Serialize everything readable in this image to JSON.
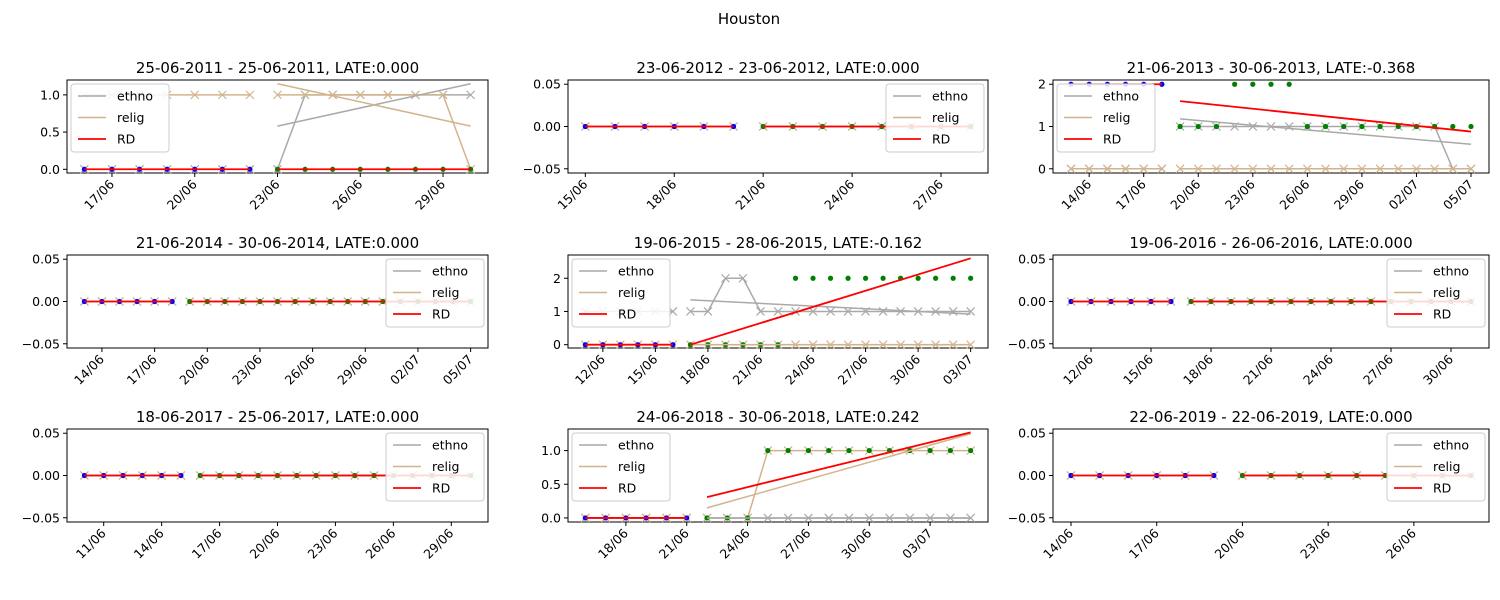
{
  "figure": {
    "suptitle": "Houston"
  },
  "legend_labels": {
    "ethno": "ethno",
    "relig": "relig",
    "rd": "RD"
  },
  "colors": {
    "ethno": "#a9a9a9",
    "relig": "#d2b48c",
    "rd": "#ff0000",
    "pre_marker": "#0000ff",
    "post_marker": "#008000",
    "axis": "#000000"
  },
  "chart_data": [
    {
      "type": "line",
      "title": "25-06-2011 - 25-06-2011, LATE:0.000",
      "legend": "top-left",
      "x_dates": [
        "2011-06-16",
        "2011-06-17",
        "2011-06-18",
        "2011-06-19",
        "2011-06-20",
        "2011-06-21",
        "2011-06-22",
        "2011-06-23",
        "2011-06-24",
        "2011-06-25",
        "2011-06-26",
        "2011-06-27",
        "2011-06-28",
        "2011-06-29",
        "2011-06-30"
      ],
      "cutoff": "2011-06-22",
      "ylim": [
        -0.05,
        1.2
      ],
      "yticks": [
        "0.0",
        "0.5",
        "1.0"
      ],
      "ytick_values": [
        0,
        0.5,
        1.0
      ],
      "xticks": [
        "17/06",
        "20/06",
        "23/06",
        "26/06",
        "29/06"
      ],
      "xtick_dates": [
        "2011-06-17",
        "2011-06-20",
        "2011-06-23",
        "2011-06-26",
        "2011-06-29"
      ],
      "ethno": [
        0,
        0,
        0,
        0,
        0,
        0,
        0,
        0,
        1,
        1,
        1,
        1,
        1,
        1,
        1
      ],
      "relig": [
        1,
        1,
        1,
        1,
        1,
        1,
        1,
        1,
        1,
        1,
        1,
        1,
        1,
        1,
        0
      ],
      "outcome": [
        0,
        0,
        0,
        0,
        0,
        0,
        0,
        0,
        0,
        0,
        0,
        0,
        0,
        0,
        0
      ],
      "ethno_fit": [
        0.58,
        1.15
      ],
      "relig_fit": [
        1.15,
        0.58
      ],
      "rd_fit_pre": [
        0,
        0
      ],
      "rd_fit_post": [
        0,
        0
      ]
    },
    {
      "type": "line",
      "title": "23-06-2012 - 23-06-2012, LATE:0.000",
      "legend": "top-right",
      "x_dates": [
        "2012-06-15",
        "2012-06-16",
        "2012-06-17",
        "2012-06-18",
        "2012-06-19",
        "2012-06-20",
        "2012-06-21",
        "2012-06-22",
        "2012-06-23",
        "2012-06-24",
        "2012-06-25",
        "2012-06-26",
        "2012-06-27",
        "2012-06-28"
      ],
      "cutoff": "2012-06-20",
      "ylim": [
        -0.055,
        0.055
      ],
      "yticks": [
        "−0.05",
        "0.00",
        "0.05"
      ],
      "ytick_values": [
        -0.05,
        0,
        0.05
      ],
      "xticks": [
        "15/06",
        "18/06",
        "21/06",
        "24/06",
        "27/06"
      ],
      "xtick_dates": [
        "2012-06-15",
        "2012-06-18",
        "2012-06-21",
        "2012-06-24",
        "2012-06-27"
      ],
      "ethno": [
        0,
        0,
        0,
        0,
        0,
        0,
        0,
        0,
        0,
        0,
        0,
        0,
        0,
        0
      ],
      "relig": [
        0,
        0,
        0,
        0,
        0,
        0,
        0,
        0,
        0,
        0,
        0,
        0,
        0,
        0
      ],
      "outcome": [
        0,
        0,
        0,
        0,
        0,
        0,
        0,
        0,
        0,
        0,
        0,
        0,
        0,
        0
      ],
      "ethno_fit": [
        0,
        0
      ],
      "relig_fit": [
        0,
        0
      ],
      "rd_fit_pre": [
        0,
        0
      ],
      "rd_fit_post": [
        0,
        0
      ]
    },
    {
      "type": "line",
      "title": "21-06-2013 - 30-06-2013, LATE:-0.368",
      "legend": "top-left",
      "x_dates": [
        "2013-06-13",
        "2013-06-14",
        "2013-06-15",
        "2013-06-16",
        "2013-06-17",
        "2013-06-18",
        "2013-06-19",
        "2013-06-20",
        "2013-06-21",
        "2013-06-22",
        "2013-06-23",
        "2013-06-24",
        "2013-06-25",
        "2013-06-26",
        "2013-06-27",
        "2013-06-28",
        "2013-06-29",
        "2013-06-30",
        "2013-07-01",
        "2013-07-02",
        "2013-07-03",
        "2013-07-04",
        "2013-07-05"
      ],
      "cutoff": "2013-06-18",
      "ylim": [
        -0.1,
        2.1
      ],
      "yticks": [
        "0",
        "1",
        "2"
      ],
      "ytick_values": [
        0,
        1,
        2
      ],
      "xticks": [
        "14/06",
        "17/06",
        "20/06",
        "23/06",
        "26/06",
        "29/06",
        "02/07",
        "05/07"
      ],
      "xtick_dates": [
        "2013-06-14",
        "2013-06-17",
        "2013-06-20",
        "2013-06-23",
        "2013-06-26",
        "2013-06-29",
        "2013-07-02",
        "2013-07-05"
      ],
      "ethno": [
        0,
        0,
        0,
        0,
        0,
        0,
        1,
        1,
        1,
        1,
        1,
        1,
        1,
        1,
        1,
        1,
        1,
        1,
        1,
        1,
        1,
        0,
        0
      ],
      "relig": [
        0,
        0,
        0,
        0,
        0,
        0,
        0,
        0,
        0,
        0,
        0,
        0,
        0,
        0,
        0,
        0,
        0,
        0,
        0,
        0,
        0,
        0,
        0
      ],
      "outcome": [
        2,
        2,
        2,
        2,
        2,
        2,
        1,
        1,
        1,
        2,
        2,
        2,
        2,
        1,
        1,
        1,
        1,
        1,
        1,
        1,
        1,
        1,
        1
      ],
      "ethno_fit": [
        1.18,
        0.58
      ],
      "relig_fit": [
        0,
        0
      ],
      "rd_fit_pre": [
        2,
        2
      ],
      "rd_fit_post": [
        1.6,
        0.88
      ]
    },
    {
      "type": "line",
      "title": "21-06-2014 - 30-06-2014, LATE:0.000",
      "legend": "top-right",
      "x_dates": [
        "2014-06-13",
        "2014-06-14",
        "2014-06-15",
        "2014-06-16",
        "2014-06-17",
        "2014-06-18",
        "2014-06-19",
        "2014-06-20",
        "2014-06-21",
        "2014-06-22",
        "2014-06-23",
        "2014-06-24",
        "2014-06-25",
        "2014-06-26",
        "2014-06-27",
        "2014-06-28",
        "2014-06-29",
        "2014-06-30",
        "2014-07-01",
        "2014-07-02",
        "2014-07-03",
        "2014-07-04",
        "2014-07-05"
      ],
      "cutoff": "2014-06-18",
      "ylim": [
        -0.055,
        0.055
      ],
      "yticks": [
        "−0.05",
        "0.00",
        "0.05"
      ],
      "ytick_values": [
        -0.05,
        0,
        0.05
      ],
      "xticks": [
        "14/06",
        "17/06",
        "20/06",
        "23/06",
        "26/06",
        "29/06",
        "02/07",
        "05/07"
      ],
      "xtick_dates": [
        "2014-06-14",
        "2014-06-17",
        "2014-06-20",
        "2014-06-23",
        "2014-06-26",
        "2014-06-29",
        "2014-07-02",
        "2014-07-05"
      ],
      "ethno": [
        0,
        0,
        0,
        0,
        0,
        0,
        0,
        0,
        0,
        0,
        0,
        0,
        0,
        0,
        0,
        0,
        0,
        0,
        0,
        0,
        0,
        0,
        0
      ],
      "relig": [
        0,
        0,
        0,
        0,
        0,
        0,
        0,
        0,
        0,
        0,
        0,
        0,
        0,
        0,
        0,
        0,
        0,
        0,
        0,
        0,
        0,
        0,
        0
      ],
      "outcome": [
        0,
        0,
        0,
        0,
        0,
        0,
        0,
        0,
        0,
        0,
        0,
        0,
        0,
        0,
        0,
        0,
        0,
        0,
        0,
        0,
        0,
        0,
        0
      ],
      "ethno_fit": [
        0,
        0
      ],
      "relig_fit": [
        0,
        0
      ],
      "rd_fit_pre": [
        0,
        0
      ],
      "rd_fit_post": [
        0,
        0
      ]
    },
    {
      "type": "line",
      "title": "19-06-2015 - 28-06-2015, LATE:-0.162",
      "legend": "top-left",
      "x_dates": [
        "2015-06-11",
        "2015-06-12",
        "2015-06-13",
        "2015-06-14",
        "2015-06-15",
        "2015-06-16",
        "2015-06-17",
        "2015-06-18",
        "2015-06-19",
        "2015-06-20",
        "2015-06-21",
        "2015-06-22",
        "2015-06-23",
        "2015-06-24",
        "2015-06-25",
        "2015-06-26",
        "2015-06-27",
        "2015-06-28",
        "2015-06-29",
        "2015-06-30",
        "2015-07-01",
        "2015-07-02",
        "2015-07-03"
      ],
      "cutoff": "2015-06-16",
      "ylim": [
        -0.1,
        2.7
      ],
      "yticks": [
        "0",
        "1",
        "2"
      ],
      "ytick_values": [
        0,
        1,
        2
      ],
      "xticks": [
        "12/06",
        "15/06",
        "18/06",
        "21/06",
        "24/06",
        "27/06",
        "30/06",
        "03/07"
      ],
      "xtick_dates": [
        "2015-06-12",
        "2015-06-15",
        "2015-06-18",
        "2015-06-21",
        "2015-06-24",
        "2015-06-27",
        "2015-06-30",
        "2015-07-03"
      ],
      "ethno": [
        1,
        1,
        1,
        1,
        1,
        1,
        1,
        1,
        2,
        2,
        1,
        1,
        1,
        1,
        1,
        1,
        1,
        1,
        1,
        1,
        1,
        1,
        1
      ],
      "relig": [
        0,
        0,
        0,
        0,
        0,
        0,
        0,
        0,
        0,
        0,
        0,
        0,
        0,
        0,
        0,
        0,
        0,
        0,
        0,
        0,
        0,
        0,
        0
      ],
      "outcome": [
        0,
        0,
        0,
        0,
        0,
        0,
        0,
        0,
        0,
        0,
        0,
        0,
        2,
        2,
        2,
        2,
        2,
        2,
        2,
        2,
        2,
        2,
        2
      ],
      "ethno_fit": [
        1.35,
        0.92
      ],
      "relig_fit": [
        0,
        0
      ],
      "rd_fit_pre": [
        0,
        0
      ],
      "rd_fit_post": [
        0,
        2.6
      ]
    },
    {
      "type": "line",
      "title": "19-06-2016 - 26-06-2016, LATE:0.000",
      "legend": "top-right",
      "x_dates": [
        "2016-06-11",
        "2016-06-12",
        "2016-06-13",
        "2016-06-14",
        "2016-06-15",
        "2016-06-16",
        "2016-06-17",
        "2016-06-18",
        "2016-06-19",
        "2016-06-20",
        "2016-06-21",
        "2016-06-22",
        "2016-06-23",
        "2016-06-24",
        "2016-06-25",
        "2016-06-26",
        "2016-06-27",
        "2016-06-28",
        "2016-06-29",
        "2016-06-30",
        "2016-07-01"
      ],
      "cutoff": "2016-06-16",
      "ylim": [
        -0.055,
        0.055
      ],
      "yticks": [
        "−0.05",
        "0.00",
        "0.05"
      ],
      "ytick_values": [
        -0.05,
        0,
        0.05
      ],
      "xticks": [
        "12/06",
        "15/06",
        "18/06",
        "21/06",
        "24/06",
        "27/06",
        "30/06"
      ],
      "xtick_dates": [
        "2016-06-12",
        "2016-06-15",
        "2016-06-18",
        "2016-06-21",
        "2016-06-24",
        "2016-06-27",
        "2016-06-30"
      ],
      "ethno": [
        0,
        0,
        0,
        0,
        0,
        0,
        0,
        0,
        0,
        0,
        0,
        0,
        0,
        0,
        0,
        0,
        0,
        0,
        0,
        0,
        0
      ],
      "relig": [
        0,
        0,
        0,
        0,
        0,
        0,
        0,
        0,
        0,
        0,
        0,
        0,
        0,
        0,
        0,
        0,
        0,
        0,
        0,
        0,
        0
      ],
      "outcome": [
        0,
        0,
        0,
        0,
        0,
        0,
        0,
        0,
        0,
        0,
        0,
        0,
        0,
        0,
        0,
        0,
        0,
        0,
        0,
        0,
        0
      ],
      "ethno_fit": [
        0,
        0
      ],
      "relig_fit": [
        0,
        0
      ],
      "rd_fit_pre": [
        0,
        0
      ],
      "rd_fit_post": [
        0,
        0
      ]
    },
    {
      "type": "line",
      "title": "18-06-2017 - 25-06-2017, LATE:0.000",
      "legend": "top-right",
      "x_dates": [
        "2017-06-10",
        "2017-06-11",
        "2017-06-12",
        "2017-06-13",
        "2017-06-14",
        "2017-06-15",
        "2017-06-16",
        "2017-06-17",
        "2017-06-18",
        "2017-06-19",
        "2017-06-20",
        "2017-06-21",
        "2017-06-22",
        "2017-06-23",
        "2017-06-24",
        "2017-06-25",
        "2017-06-26",
        "2017-06-27",
        "2017-06-28",
        "2017-06-29",
        "2017-06-30"
      ],
      "cutoff": "2017-06-15",
      "ylim": [
        -0.055,
        0.055
      ],
      "yticks": [
        "−0.05",
        "0.00",
        "0.05"
      ],
      "ytick_values": [
        -0.05,
        0,
        0.05
      ],
      "xticks": [
        "11/06",
        "14/06",
        "17/06",
        "20/06",
        "23/06",
        "26/06",
        "29/06"
      ],
      "xtick_dates": [
        "2017-06-11",
        "2017-06-14",
        "2017-06-17",
        "2017-06-20",
        "2017-06-23",
        "2017-06-26",
        "2017-06-29"
      ],
      "ethno": [
        0,
        0,
        0,
        0,
        0,
        0,
        0,
        0,
        0,
        0,
        0,
        0,
        0,
        0,
        0,
        0,
        0,
        0,
        0,
        0,
        0
      ],
      "relig": [
        0,
        0,
        0,
        0,
        0,
        0,
        0,
        0,
        0,
        0,
        0,
        0,
        0,
        0,
        0,
        0,
        0,
        0,
        0,
        0,
        0
      ],
      "outcome": [
        0,
        0,
        0,
        0,
        0,
        0,
        0,
        0,
        0,
        0,
        0,
        0,
        0,
        0,
        0,
        0,
        0,
        0,
        0,
        0,
        0
      ],
      "ethno_fit": [
        0,
        0
      ],
      "relig_fit": [
        0,
        0
      ],
      "rd_fit_pre": [
        0,
        0
      ],
      "rd_fit_post": [
        0,
        0
      ]
    },
    {
      "type": "line",
      "title": "24-06-2018 - 30-06-2018, LATE:0.242",
      "legend": "top-left",
      "x_dates": [
        "2018-06-16",
        "2018-06-17",
        "2018-06-18",
        "2018-06-19",
        "2018-06-20",
        "2018-06-21",
        "2018-06-22",
        "2018-06-23",
        "2018-06-24",
        "2018-06-25",
        "2018-06-26",
        "2018-06-27",
        "2018-06-28",
        "2018-06-29",
        "2018-06-30",
        "2018-07-01",
        "2018-07-02",
        "2018-07-03",
        "2018-07-04",
        "2018-07-05"
      ],
      "cutoff": "2018-06-21",
      "ylim": [
        -0.06,
        1.32
      ],
      "yticks": [
        "0.0",
        "0.5",
        "1.0"
      ],
      "ytick_values": [
        0,
        0.5,
        1.0
      ],
      "xticks": [
        "18/06",
        "21/06",
        "24/06",
        "27/06",
        "30/06",
        "03/07"
      ],
      "xtick_dates": [
        "2018-06-18",
        "2018-06-21",
        "2018-06-24",
        "2018-06-27",
        "2018-06-30",
        "2018-07-03"
      ],
      "ethno": [
        0,
        0,
        0,
        0,
        0,
        0,
        0,
        0,
        0,
        0,
        0,
        0,
        0,
        0,
        0,
        0,
        0,
        0,
        0,
        0
      ],
      "relig": [
        0,
        0,
        0,
        0,
        0,
        0,
        0,
        0,
        0,
        1,
        1,
        1,
        1,
        1,
        1,
        1,
        1,
        1,
        1,
        1
      ],
      "outcome": [
        0,
        0,
        0,
        0,
        0,
        0,
        0,
        0,
        0,
        1,
        1,
        1,
        1,
        1,
        1,
        1,
        1,
        1,
        1,
        1
      ],
      "ethno_fit": [
        0,
        0
      ],
      "relig_fit": [
        0.15,
        1.25
      ],
      "rd_fit_pre": [
        0,
        0
      ],
      "rd_fit_post": [
        0.31,
        1.27
      ]
    },
    {
      "type": "line",
      "title": "22-06-2019 - 22-06-2019, LATE:0.000",
      "legend": "top-right",
      "x_dates": [
        "2019-06-14",
        "2019-06-15",
        "2019-06-16",
        "2019-06-17",
        "2019-06-18",
        "2019-06-19",
        "2019-06-20",
        "2019-06-21",
        "2019-06-22",
        "2019-06-23",
        "2019-06-24",
        "2019-06-25",
        "2019-06-26",
        "2019-06-27",
        "2019-06-28"
      ],
      "cutoff": "2019-06-19",
      "ylim": [
        -0.055,
        0.055
      ],
      "yticks": [
        "−0.05",
        "0.00",
        "0.05"
      ],
      "ytick_values": [
        -0.05,
        0,
        0.05
      ],
      "xticks": [
        "14/06",
        "17/06",
        "20/06",
        "23/06",
        "26/06"
      ],
      "xtick_dates": [
        "2019-06-14",
        "2019-06-17",
        "2019-06-20",
        "2019-06-23",
        "2019-06-26"
      ],
      "ethno": [
        0,
        0,
        0,
        0,
        0,
        0,
        0,
        0,
        0,
        0,
        0,
        0,
        0,
        0,
        0
      ],
      "relig": [
        0,
        0,
        0,
        0,
        0,
        0,
        0,
        0,
        0,
        0,
        0,
        0,
        0,
        0,
        0
      ],
      "outcome": [
        0,
        0,
        0,
        0,
        0,
        0,
        0,
        0,
        0,
        0,
        0,
        0,
        0,
        0,
        0
      ],
      "ethno_fit": [
        0,
        0
      ],
      "relig_fit": [
        0,
        0
      ],
      "rd_fit_pre": [
        0,
        0
      ],
      "rd_fit_post": [
        0,
        0
      ]
    }
  ]
}
